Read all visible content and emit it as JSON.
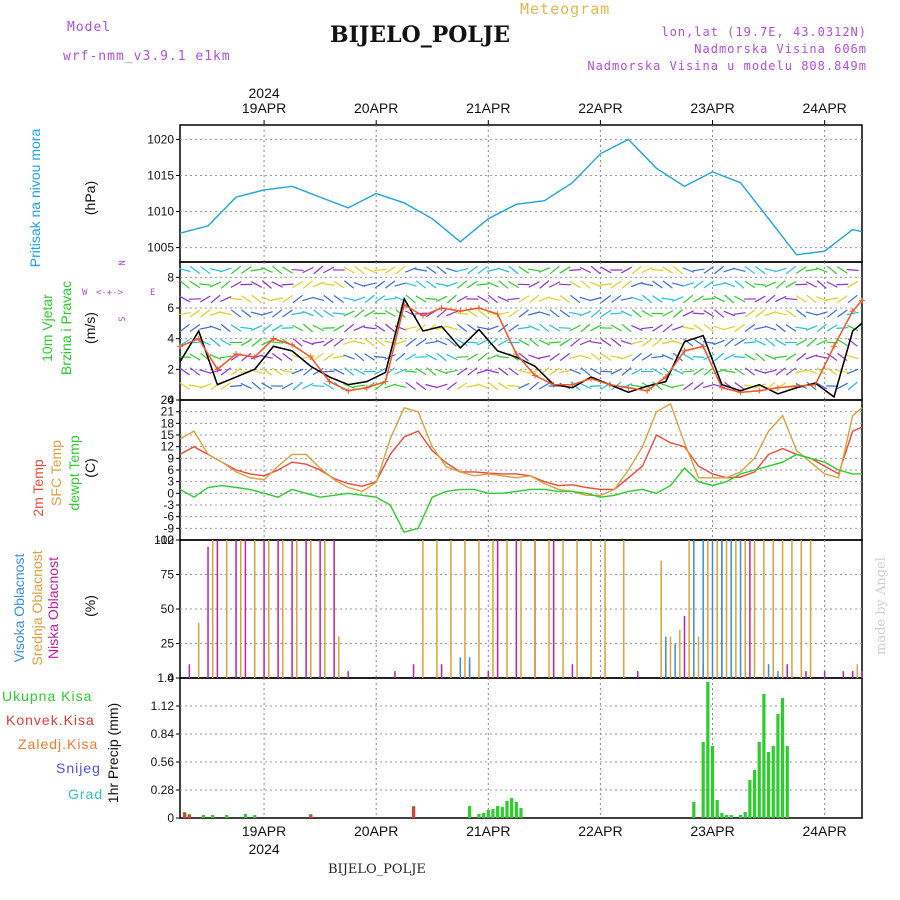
{
  "header": {
    "model_label": "Model",
    "model_name": "wrf-nmm_v3.9.1 e1km",
    "meteogram": "Meteogram",
    "station": "BIJELO_POLJE",
    "lonlat": "lon,lat (19.7E, 43.0312N)",
    "elevation": "Nadmorska Visina 606m",
    "model_elevation": "Nadmorska Visina u modelu 808.849m"
  },
  "footer": {
    "station": "BIJELO_POLJE",
    "made_by": "made by Angel"
  },
  "axis_dates": {
    "year": "2024",
    "days": [
      "19APR",
      "20APR",
      "21APR",
      "22APR",
      "23APR",
      "24APR"
    ]
  },
  "panel_labels": {
    "pressure": {
      "name": "Pritisak na nivou mora",
      "unit": "(hPa)"
    },
    "wind": {
      "line1": "10m Vjetar",
      "line2": "Brzina i Pravac",
      "unit": "(m/s)",
      "compass": "N",
      "compass_w": "W",
      "compass_e": "E",
      "compass_s": "S"
    },
    "temp": {
      "t2m": "2m Temp",
      "sfc": "SFC Temp",
      "dew": "dewpt Temp",
      "unit": "(C)"
    },
    "cloud": {
      "high": "Visoka Oblacnost",
      "mid": "Srednja Oblacnost",
      "low": "Niska Oblacnost",
      "unit": "(%)"
    },
    "precip": {
      "unit": "1hr Precip (mm)",
      "legend": [
        "Ukupna Kisa",
        "Konvek.Kisa",
        "Zaledj.Kisa",
        "Snijeg",
        "Grad"
      ]
    }
  },
  "colors": {
    "pressure": "#1ea3e0",
    "t2m": "#f04838",
    "sfc": "#d9a23a",
    "dew": "#2ccd2c",
    "wind_speed": "#000000",
    "wind_gust": "#f05a2a",
    "cloud_high": "#3a8fd8",
    "cloud_mid": "#d9a23a",
    "cloud_low": "#c020a0",
    "rain_total": "#2ccd2c",
    "rain_conv": "#e03a3a",
    "rain_frz": "#f07a30",
    "snow": "#5050e0",
    "hail": "#30c0c0"
  },
  "chart_data": [
    {
      "type": "line",
      "panel": "pressure",
      "ylim": [
        1003,
        1022
      ],
      "yticks": [
        1005,
        1010,
        1015,
        1020
      ],
      "x_hours": [
        0,
        6,
        12,
        18,
        24,
        30,
        36,
        42,
        48,
        54,
        60,
        66,
        72,
        78,
        84,
        90,
        96,
        102,
        108,
        114,
        120,
        126,
        132,
        138,
        144,
        146
      ],
      "series": [
        {
          "values": [
            1007,
            1008,
            1012,
            1013,
            1013.5,
            1012,
            1010.5,
            1012.5,
            1011.2,
            1009,
            1005.8,
            1009,
            1011,
            1011.5,
            1014,
            1018,
            1020,
            1016,
            1013.5,
            1015.5,
            1014,
            1009,
            1004,
            1004.5,
            1007.5,
            1007.2
          ]
        }
      ]
    },
    {
      "type": "line",
      "panel": "wind",
      "ylim": [
        0,
        9
      ],
      "yticks": [
        0,
        2,
        4,
        6,
        8
      ],
      "x_hours": [
        0,
        4,
        8,
        12,
        16,
        20,
        24,
        28,
        32,
        36,
        40,
        44,
        48,
        52,
        56,
        60,
        64,
        68,
        72,
        76,
        80,
        84,
        88,
        92,
        96,
        100,
        104,
        108,
        112,
        116,
        120,
        124,
        128,
        132,
        136,
        140,
        144,
        146
      ],
      "series": [
        {
          "name": "speed",
          "values": [
            2.5,
            4.5,
            1.0,
            1.5,
            2.0,
            3.5,
            3.2,
            2.2,
            1.5,
            1.0,
            1.2,
            1.8,
            6.6,
            4.5,
            4.8,
            3.4,
            4.6,
            3.2,
            2.8,
            2.2,
            1.0,
            0.8,
            1.5,
            1.0,
            0.5,
            0.9,
            1.2,
            3.8,
            4.2,
            1.0,
            0.6,
            1.0,
            0.4,
            0.8,
            1.1,
            0.2,
            4.5,
            5.0
          ]
        },
        {
          "name": "gust",
          "values": [
            3.5,
            4.0,
            2.0,
            3.0,
            2.8,
            4.0,
            3.6,
            2.8,
            1.2,
            0.6,
            0.8,
            1.2,
            6.2,
            5.5,
            6.0,
            5.8,
            6.0,
            5.6,
            3.0,
            1.6,
            1.0,
            1.0,
            1.4,
            1.0,
            0.8,
            0.6,
            1.5,
            3.2,
            3.5,
            0.8,
            0.5,
            0.6,
            0.8,
            0.9,
            1.0,
            3.5,
            5.8,
            6.5
          ]
        }
      ]
    },
    {
      "type": "line",
      "panel": "temperature",
      "ylim": [
        -12,
        24
      ],
      "yticks": [
        -12,
        -9,
        -6,
        -3,
        0,
        3,
        6,
        9,
        12,
        15,
        18,
        21,
        24
      ],
      "x_hours": [
        0,
        3,
        6,
        9,
        12,
        15,
        18,
        21,
        24,
        27,
        30,
        33,
        36,
        39,
        42,
        45,
        48,
        51,
        54,
        57,
        60,
        63,
        66,
        69,
        72,
        75,
        78,
        81,
        84,
        87,
        90,
        93,
        96,
        99,
        102,
        105,
        108,
        111,
        114,
        117,
        120,
        123,
        126,
        129,
        132,
        135,
        138,
        141,
        144,
        146
      ],
      "series": [
        {
          "name": "2m",
          "values": [
            10,
            12,
            10,
            8,
            6,
            5,
            4.5,
            6,
            8,
            7.5,
            6,
            3.8,
            2.5,
            1.8,
            3,
            10,
            14.5,
            16,
            11,
            7.8,
            5.5,
            5.5,
            5.2,
            5,
            5,
            4.5,
            3,
            2,
            2.2,
            1.5,
            1,
            1,
            4,
            7,
            15,
            13,
            12,
            7,
            5,
            4,
            4.2,
            5.5,
            10,
            11.5,
            10,
            9,
            7,
            5,
            16,
            17
          ]
        },
        {
          "name": "sfc",
          "values": [
            14,
            16,
            10,
            8,
            5.5,
            4,
            3.5,
            7,
            10,
            10,
            6.5,
            3.5,
            1.5,
            0.5,
            2.8,
            14,
            22,
            21,
            12,
            6.8,
            5.5,
            4.5,
            5,
            4.5,
            4,
            4.5,
            2.5,
            1,
            0.5,
            -0.5,
            -0.5,
            1,
            6,
            12,
            21,
            23,
            13,
            4,
            4,
            4,
            5.5,
            9,
            16,
            20,
            11,
            8,
            5,
            4,
            20,
            22
          ]
        },
        {
          "name": "dewpt",
          "values": [
            1,
            -1,
            1.5,
            2,
            1.5,
            1,
            0,
            -1,
            1,
            0,
            -1,
            -0.5,
            0,
            -0.5,
            -1,
            -3,
            -10,
            -9,
            -1,
            0.5,
            1,
            1,
            0,
            0,
            0.5,
            1,
            1,
            0.5,
            0.5,
            0,
            -1,
            -0.5,
            0.5,
            1,
            0,
            2,
            6.5,
            3,
            2,
            3,
            5,
            6,
            7,
            8,
            10,
            9,
            8,
            6,
            5,
            5
          ]
        }
      ]
    },
    {
      "type": "bar",
      "panel": "cloud",
      "ylim": [
        0,
        100
      ],
      "yticks": [
        0,
        25,
        50,
        75,
        100
      ],
      "series": [
        {
          "name": "low",
          "hours": [
            2,
            6,
            8,
            12,
            14,
            16,
            18,
            21,
            24,
            27,
            30,
            33,
            36,
            46,
            50,
            56,
            62,
            66,
            68,
            72,
            76,
            80,
            84,
            98,
            104,
            108,
            112,
            116,
            122,
            130,
            134,
            138,
            142,
            144,
            146
          ],
          "values": [
            10,
            95,
            100,
            100,
            100,
            100,
            100,
            100,
            100,
            100,
            100,
            100,
            5,
            5,
            10,
            10,
            10,
            5,
            100,
            100,
            100,
            100,
            10,
            5,
            10,
            45,
            10,
            100,
            100,
            10,
            5,
            5,
            5,
            5,
            5
          ]
        },
        {
          "name": "mid",
          "hours": [
            4,
            7,
            10,
            13,
            16,
            19,
            22,
            25,
            28,
            31,
            34,
            52,
            55,
            58,
            61,
            64,
            67,
            70,
            73,
            76,
            79,
            82,
            85,
            88,
            91,
            95,
            103,
            105,
            107,
            109,
            111,
            113,
            115,
            117,
            119,
            121,
            123,
            125,
            127,
            129,
            131,
            133,
            135,
            145
          ],
          "values": [
            40,
            100,
            100,
            100,
            100,
            100,
            100,
            100,
            100,
            100,
            30,
            100,
            100,
            100,
            100,
            100,
            100,
            100,
            100,
            100,
            100,
            100,
            100,
            100,
            100,
            100,
            85,
            30,
            35,
            100,
            30,
            100,
            100,
            100,
            100,
            100,
            100,
            100,
            100,
            100,
            100,
            100,
            100,
            10
          ]
        },
        {
          "name": "high",
          "hours": [
            60,
            62,
            104,
            106,
            110,
            112,
            114,
            116,
            118,
            120,
            126,
            128
          ],
          "values": [
            15,
            15,
            30,
            25,
            100,
            100,
            100,
            100,
            100,
            100,
            10,
            5
          ]
        }
      ]
    },
    {
      "type": "bar",
      "panel": "precip",
      "ylim": [
        0,
        1.4
      ],
      "yticks": [
        0,
        0.28,
        0.56,
        0.84,
        1.12,
        1.4
      ],
      "series": [
        {
          "name": "Ukupna Kisa",
          "hours": [
            1,
            2,
            5,
            7,
            10,
            14,
            16,
            28,
            50,
            62,
            64,
            65,
            66,
            67,
            68,
            69,
            70,
            71,
            72,
            73,
            110,
            112,
            113,
            114,
            115,
            116,
            117,
            118,
            120,
            121,
            122,
            123,
            124,
            125,
            126,
            127,
            128,
            129,
            130
          ],
          "values": [
            0.06,
            0.04,
            0.03,
            0.03,
            0.03,
            0.04,
            0.03,
            0.04,
            0.12,
            0.12,
            0.04,
            0.05,
            0.08,
            0.09,
            0.12,
            0.11,
            0.17,
            0.2,
            0.16,
            0.1,
            0.16,
            0.76,
            1.36,
            0.72,
            0.18,
            0.05,
            0.03,
            0.03,
            0.03,
            0.06,
            0.38,
            0.48,
            0.76,
            1.24,
            0.66,
            0.72,
            1.04,
            1.2,
            0.72
          ]
        },
        {
          "name": "Konvek.Kisa",
          "hours": [
            1,
            2,
            28,
            50
          ],
          "values": [
            0.05,
            0.03,
            0.03,
            0.11
          ]
        }
      ]
    }
  ]
}
